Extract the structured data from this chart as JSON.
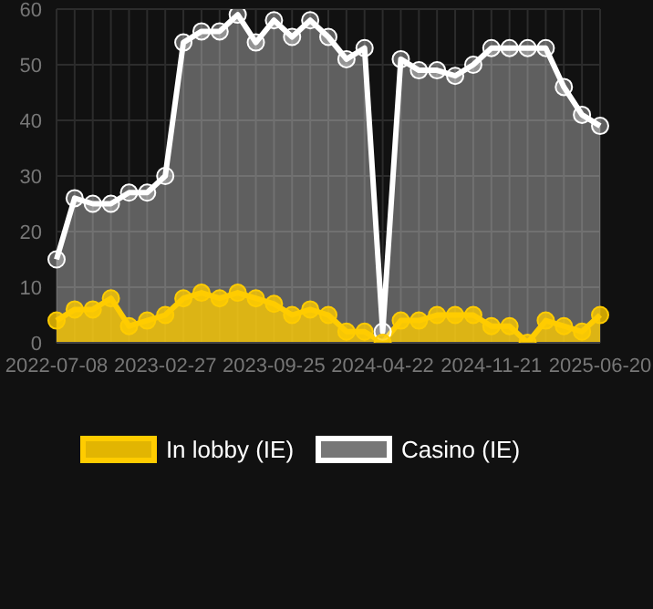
{
  "chart_data": {
    "type": "area",
    "categories": [
      "2022-07-08",
      null,
      null,
      null,
      null,
      null,
      "2023-02-27",
      null,
      null,
      null,
      null,
      null,
      "2023-09-25",
      null,
      null,
      null,
      null,
      null,
      "2024-04-22",
      null,
      null,
      null,
      null,
      null,
      "2024-11-21",
      null,
      null,
      null,
      null,
      null,
      "2025-06-20"
    ],
    "series": [
      {
        "name": "In lobby (IE)",
        "color": "#ffcc00",
        "values": [
          4,
          6,
          6,
          8,
          3,
          4,
          5,
          8,
          9,
          8,
          9,
          8,
          7,
          5,
          6,
          5,
          2,
          2,
          0,
          4,
          4,
          5,
          5,
          5,
          3,
          3,
          0,
          4,
          3,
          2,
          5
        ]
      },
      {
        "name": "Casino (IE)",
        "color": "#ffffff",
        "values": [
          15,
          26,
          25,
          25,
          27,
          27,
          30,
          54,
          56,
          56,
          59,
          54,
          58,
          55,
          58,
          55,
          51,
          53,
          2,
          51,
          49,
          49,
          48,
          50,
          53,
          53,
          53,
          53,
          46,
          41,
          39
        ]
      }
    ],
    "ylim": [
      0,
      60
    ],
    "yticks": [
      0,
      10,
      20,
      30,
      40,
      50,
      60
    ],
    "grid": true,
    "legend": "bottom",
    "marker": "circle"
  }
}
